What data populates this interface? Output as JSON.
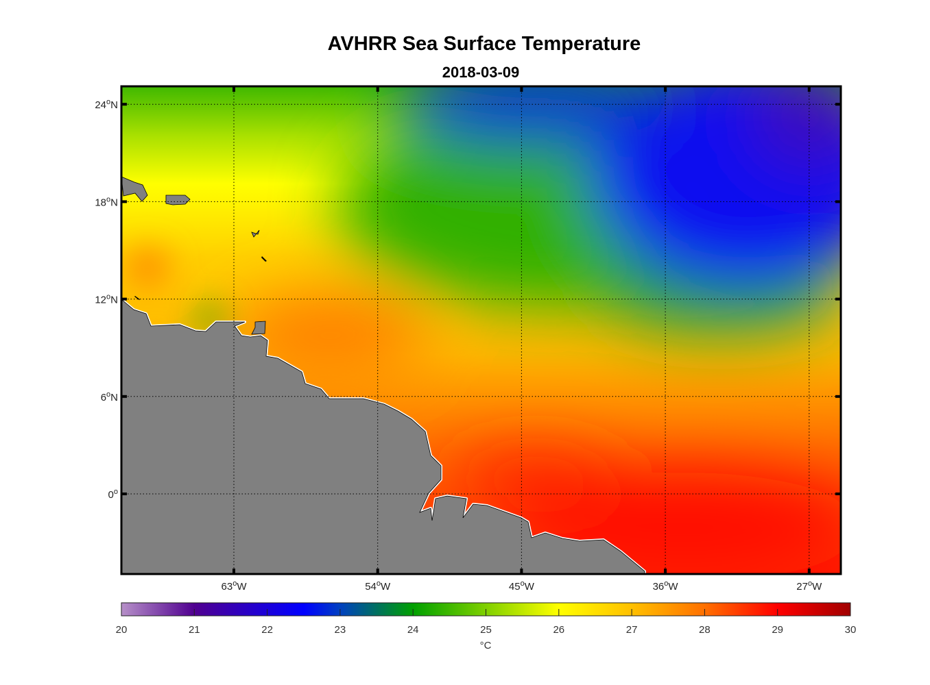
{
  "chart_data": {
    "type": "heatmap",
    "title": "AVHRR Sea Surface Temperature",
    "subtitle": "2018-03-09",
    "lat_ticks": [
      {
        "value": 24,
        "label": "24°N"
      },
      {
        "value": 18,
        "label": "18°N"
      },
      {
        "value": 12,
        "label": "12°N"
      },
      {
        "value": 6,
        "label": "6°N"
      },
      {
        "value": 0,
        "label": "0°"
      }
    ],
    "lon_ticks": [
      {
        "value": -63,
        "label": "63°W"
      },
      {
        "value": -54,
        "label": "54°W"
      },
      {
        "value": -45,
        "label": "45°W"
      },
      {
        "value": -36,
        "label": "36°W"
      },
      {
        "value": -27,
        "label": "27°W"
      }
    ],
    "lat_range": [
      -5,
      25
    ],
    "lon_range": [
      -70,
      -25
    ],
    "grid": true,
    "land_color": "#808080",
    "colorbar": {
      "range": [
        20,
        30
      ],
      "ticks": [
        "20",
        "21",
        "22",
        "23",
        "24",
        "25",
        "26",
        "27",
        "28",
        "29",
        "30"
      ],
      "label": "°C",
      "placement": "bottom"
    }
  }
}
